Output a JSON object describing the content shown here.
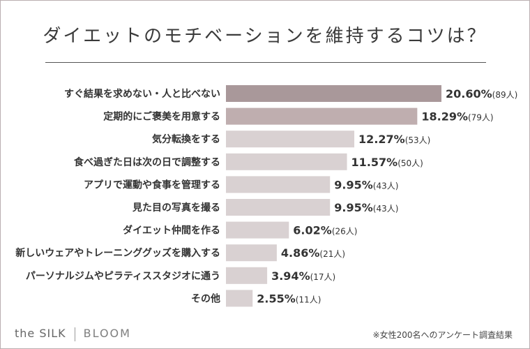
{
  "header": {
    "title": "ダイエットのモチベーションを維持するコツは？"
  },
  "brand": {
    "name_1": "the SILK",
    "name_2": "BLOOM"
  },
  "footnote": "※女性200名へのアンケート調査結果",
  "colors": {
    "bar_top": "#a9989a",
    "bar_second": "#bfaeaf",
    "bar_light": "#d9d1d2",
    "border": "#b9aeb0"
  },
  "chart_data": {
    "type": "bar",
    "orientation": "horizontal",
    "title": "ダイエットのモチベーションを維持するコツは？",
    "categories": [
      "すぐ結果を求めない・人と比べない",
      "定期的にご褒美を用意する",
      "気分転換をする",
      "食べ過ぎた日は次の日で調整する",
      "アプリで運動や食事を管理する",
      "見た目の写真を撮る",
      "ダイエット仲間を作る",
      "新しいウェアやトレーニンググッズを購入する",
      "パーソナルジムやピラティススタジオに通う",
      "その他"
    ],
    "values": [
      20.6,
      18.29,
      12.27,
      11.57,
      9.95,
      9.95,
      6.02,
      4.86,
      3.94,
      2.55
    ],
    "value_labels": [
      "20.60%",
      "18.29%",
      "12.27%",
      "11.57%",
      "9.95%",
      "9.95%",
      "6.02%",
      "4.86%",
      "3.94%",
      "2.55%"
    ],
    "counts": [
      "(89人)",
      "(79人)",
      "(53人)",
      "(50人)",
      "(43人)",
      "(43人)",
      "(26人)",
      "(21人)",
      "(17人)",
      "(11人)"
    ],
    "unit": "%",
    "grid": false,
    "legend": "none"
  }
}
